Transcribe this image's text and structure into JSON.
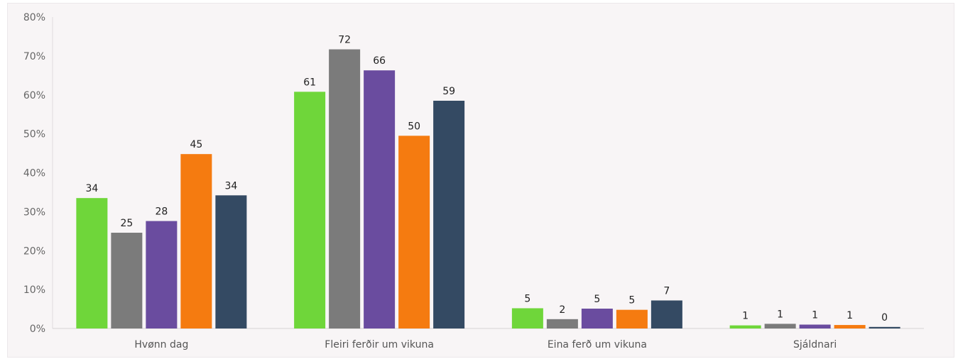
{
  "chart_data": {
    "type": "bar",
    "categories": [
      "Hvønn dag",
      "Fleiri ferðir um vikuna",
      "Eina ferð um vikuna",
      "Sjáldnari"
    ],
    "series": [
      {
        "color": "#6fd63a",
        "values": [
          33.5,
          60.8,
          5.2,
          0.8
        ],
        "labels": [
          "34",
          "61",
          "5",
          "1"
        ]
      },
      {
        "color": "#7b7b7b",
        "values": [
          24.6,
          71.7,
          2.4,
          1.2
        ],
        "labels": [
          "25",
          "72",
          "2",
          "1"
        ]
      },
      {
        "color": "#6a4c9f",
        "values": [
          27.6,
          66.3,
          5.1,
          1.0
        ],
        "labels": [
          "28",
          "66",
          "5",
          "1"
        ]
      },
      {
        "color": "#f57b10",
        "values": [
          44.8,
          49.5,
          4.8,
          0.9
        ],
        "labels": [
          "45",
          "50",
          "5",
          "1"
        ]
      },
      {
        "color": "#344a63",
        "values": [
          34.2,
          58.5,
          7.2,
          0.4
        ],
        "labels": [
          "34",
          "59",
          "7",
          "0"
        ]
      }
    ],
    "ylim": [
      0,
      80
    ],
    "yticks": [
      0,
      10,
      20,
      30,
      40,
      50,
      60,
      70,
      80
    ],
    "ytick_labels": [
      "0%",
      "10%",
      "20%",
      "30%",
      "40%",
      "50%",
      "60%",
      "70%",
      "80%"
    ],
    "grid": false,
    "legend": "none",
    "title": "",
    "xlabel": "",
    "ylabel": ""
  }
}
